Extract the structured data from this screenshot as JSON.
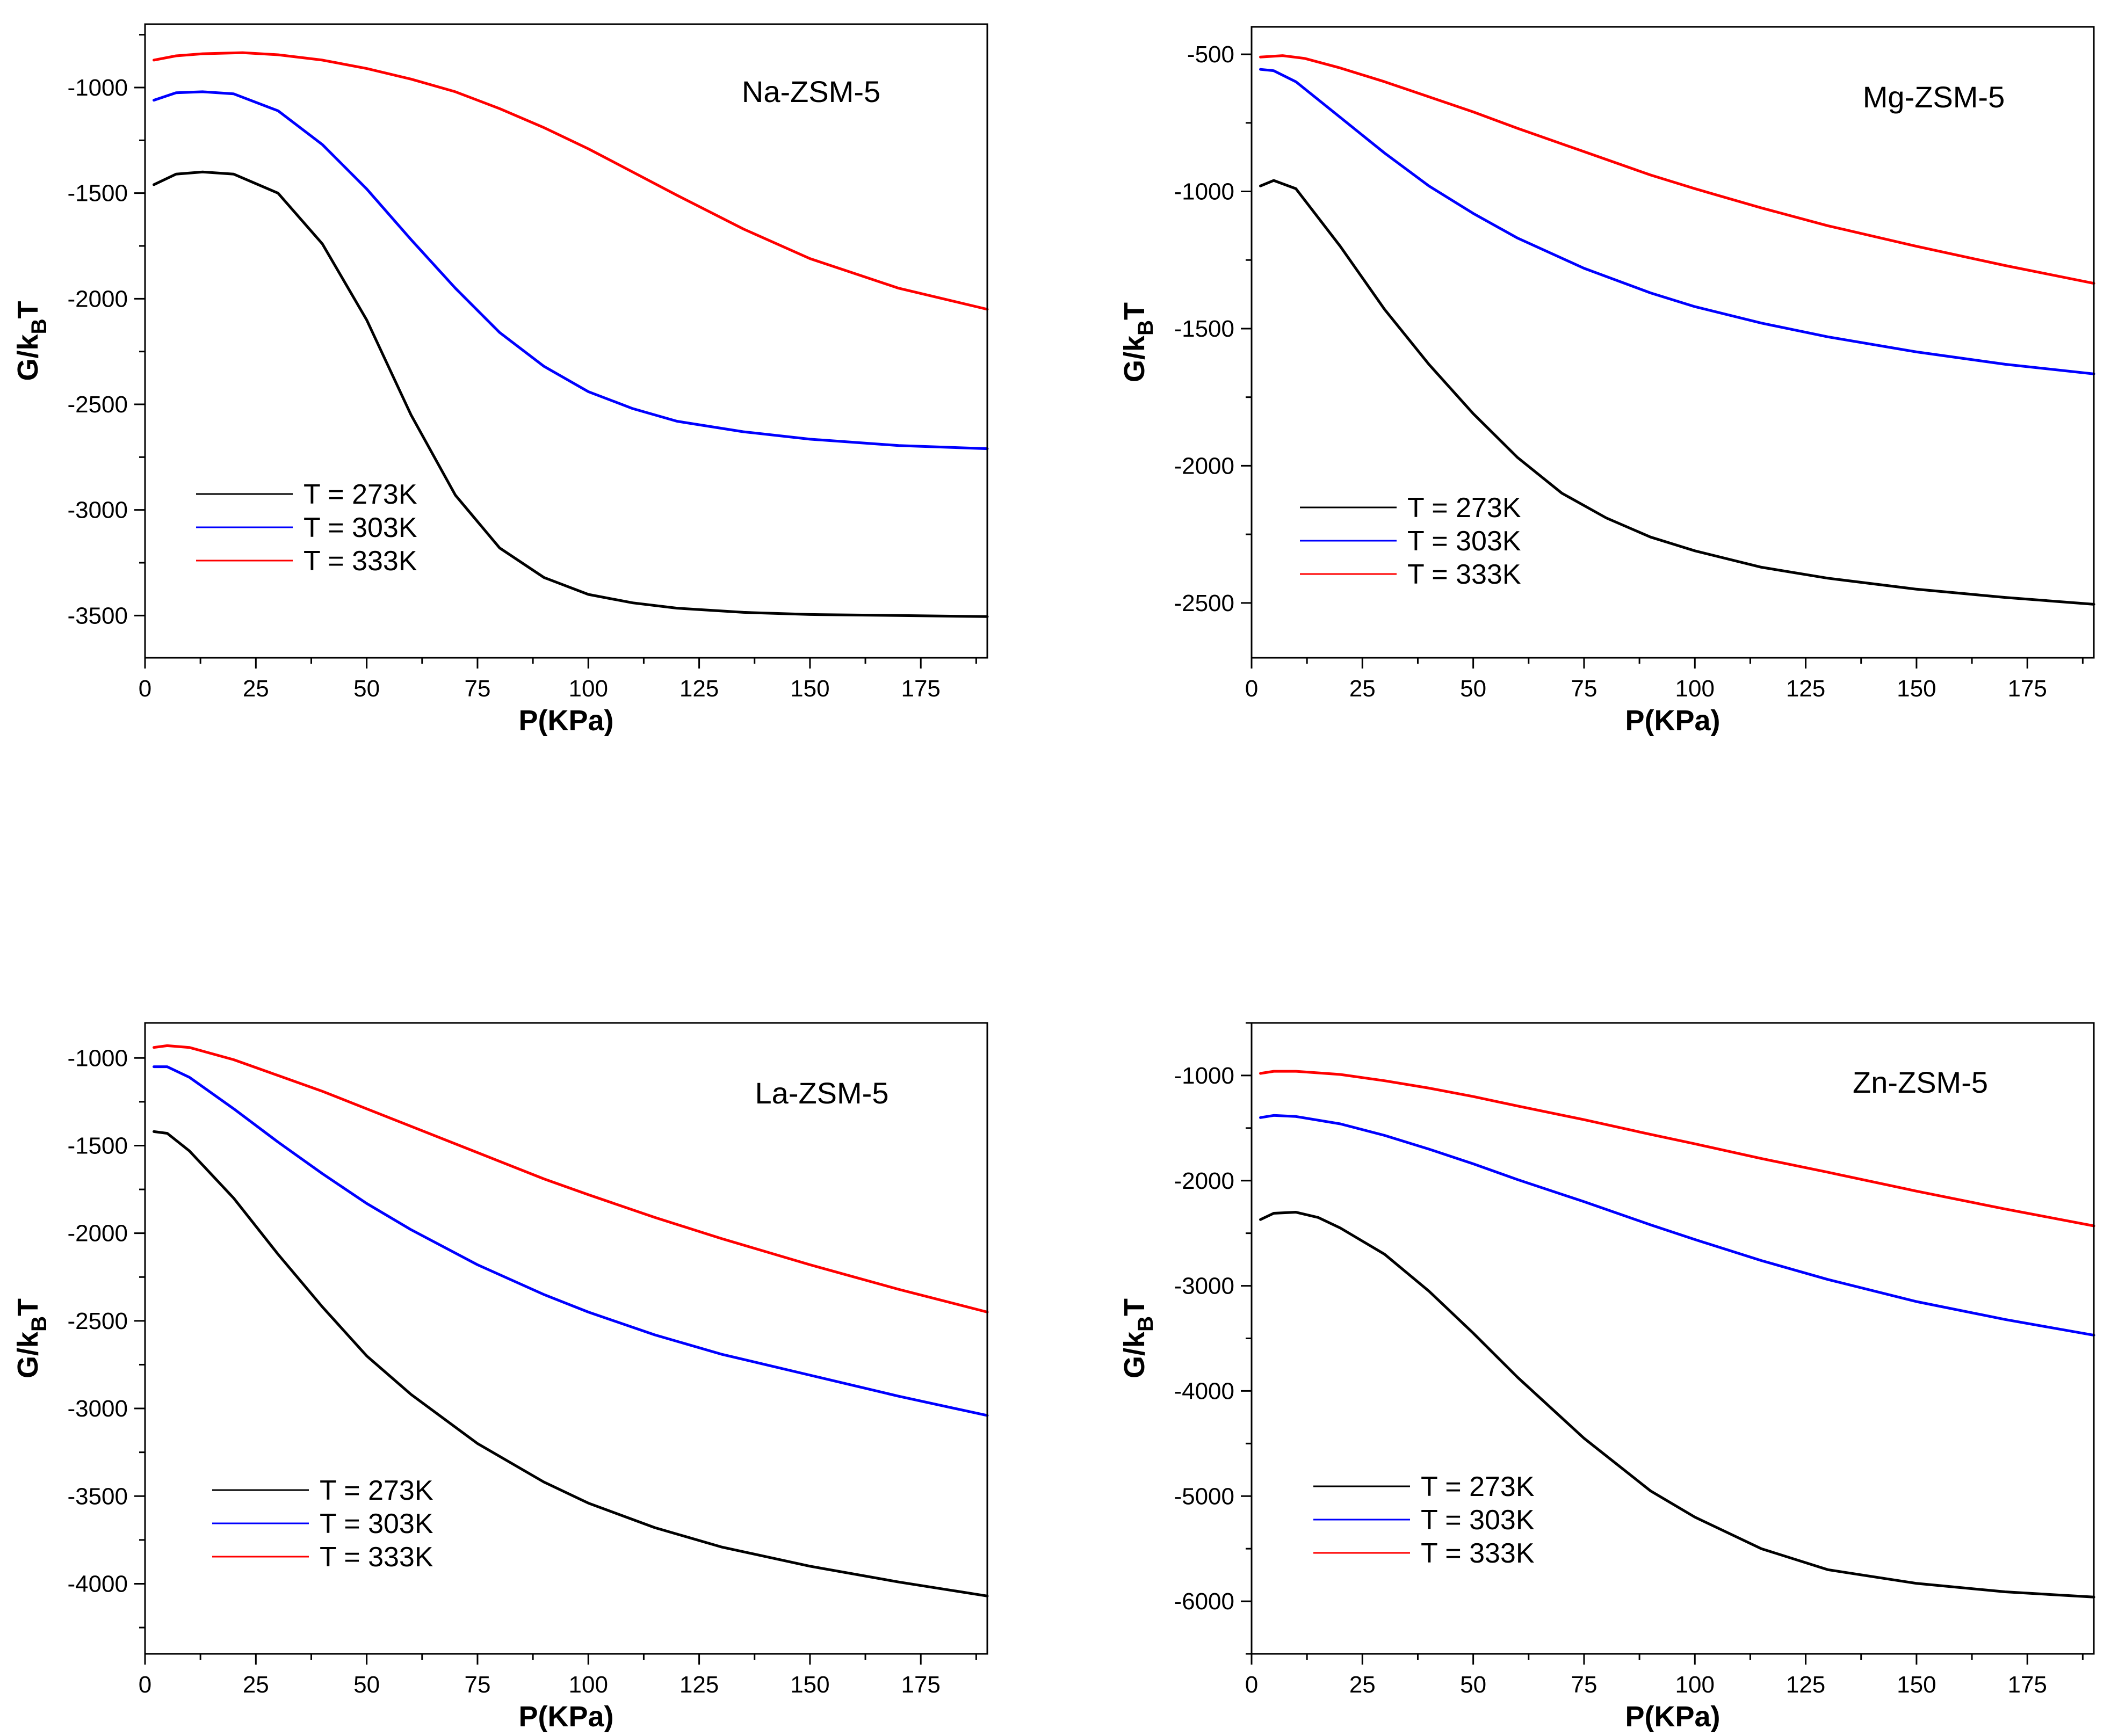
{
  "chart_data": [
    {
      "type": "line",
      "annotation": "Na-ZSM-5",
      "xlabel": "P(KPa)",
      "ylabel": {
        "main": "G/k",
        "sub": "B",
        "tail": "T"
      },
      "xlim": [
        0,
        190
      ],
      "ylim": [
        -3700,
        -700
      ],
      "xticks": [
        0,
        25,
        50,
        75,
        100,
        125,
        150,
        175
      ],
      "yticks": [
        -3500,
        -3000,
        -2500,
        -2000,
        -1500,
        -1000
      ],
      "legend_position": "bottom-left",
      "series": [
        {
          "name": "T = 273K",
          "color": "#000000",
          "x": [
            2,
            7,
            13,
            20,
            30,
            40,
            50,
            60,
            70,
            80,
            90,
            100,
            110,
            120,
            135,
            150,
            170,
            190
          ],
          "y": [
            -1460,
            -1410,
            -1400,
            -1410,
            -1500,
            -1740,
            -2100,
            -2550,
            -2930,
            -3180,
            -3320,
            -3400,
            -3440,
            -3465,
            -3485,
            -3495,
            -3500,
            -3505
          ]
        },
        {
          "name": "T = 303K",
          "color": "#0000ff",
          "x": [
            2,
            7,
            13,
            20,
            30,
            40,
            50,
            60,
            70,
            80,
            90,
            100,
            110,
            120,
            135,
            150,
            170,
            190
          ],
          "y": [
            -1060,
            -1025,
            -1020,
            -1030,
            -1110,
            -1270,
            -1480,
            -1720,
            -1950,
            -2160,
            -2320,
            -2440,
            -2520,
            -2580,
            -2630,
            -2665,
            -2695,
            -2710
          ]
        },
        {
          "name": "T = 333K",
          "color": "#ff0000",
          "x": [
            2,
            7,
            13,
            22,
            30,
            40,
            50,
            60,
            70,
            80,
            90,
            100,
            110,
            120,
            135,
            150,
            170,
            190
          ],
          "y": [
            -870,
            -850,
            -840,
            -835,
            -845,
            -870,
            -910,
            -960,
            -1020,
            -1100,
            -1190,
            -1290,
            -1400,
            -1510,
            -1670,
            -1810,
            -1950,
            -2050
          ]
        }
      ]
    },
    {
      "type": "line",
      "annotation": "Mg-ZSM-5",
      "xlabel": "P(KPa)",
      "ylabel": {
        "main": "G/k",
        "sub": "B",
        "tail": "T"
      },
      "xlim": [
        0,
        190
      ],
      "ylim": [
        -2700,
        -400
      ],
      "xticks": [
        0,
        25,
        50,
        75,
        100,
        125,
        150,
        175
      ],
      "yticks": [
        -2500,
        -2000,
        -1500,
        -1000,
        -500
      ],
      "legend_position": "bottom-left",
      "series": [
        {
          "name": "T = 273K",
          "color": "#000000",
          "x": [
            2,
            5,
            10,
            20,
            30,
            40,
            50,
            60,
            70,
            80,
            90,
            100,
            115,
            130,
            150,
            170,
            190
          ],
          "y": [
            -980,
            -960,
            -990,
            -1200,
            -1430,
            -1630,
            -1810,
            -1970,
            -2100,
            -2190,
            -2260,
            -2310,
            -2370,
            -2410,
            -2450,
            -2480,
            -2505
          ]
        },
        {
          "name": "T = 303K",
          "color": "#0000ff",
          "x": [
            2,
            5,
            10,
            20,
            30,
            40,
            50,
            60,
            75,
            90,
            100,
            115,
            130,
            150,
            170,
            190
          ],
          "y": [
            -555,
            -560,
            -600,
            -730,
            -860,
            -980,
            -1080,
            -1170,
            -1280,
            -1370,
            -1420,
            -1480,
            -1530,
            -1585,
            -1630,
            -1665
          ]
        },
        {
          "name": "T = 333K",
          "color": "#ff0000",
          "x": [
            2,
            7,
            12,
            20,
            30,
            40,
            50,
            60,
            75,
            90,
            100,
            115,
            130,
            150,
            170,
            190
          ],
          "y": [
            -510,
            -505,
            -515,
            -550,
            -600,
            -655,
            -710,
            -770,
            -855,
            -940,
            -990,
            -1060,
            -1125,
            -1200,
            -1270,
            -1335
          ]
        }
      ]
    },
    {
      "type": "line",
      "annotation": "La-ZSM-5",
      "xlabel": "P(KPa)",
      "ylabel": {
        "main": "G/k",
        "sub": "B",
        "tail": "T"
      },
      "xlim": [
        0,
        190
      ],
      "ylim": [
        -4400,
        -800
      ],
      "xticks": [
        0,
        25,
        50,
        75,
        100,
        125,
        150,
        175
      ],
      "yticks": [
        -4000,
        -3500,
        -3000,
        -2500,
        -2000,
        -1500,
        -1000
      ],
      "legend_position": "bottom-left",
      "series": [
        {
          "name": "T = 273K",
          "color": "#000000",
          "x": [
            2,
            5,
            10,
            20,
            30,
            40,
            50,
            60,
            75,
            90,
            100,
            115,
            130,
            150,
            170,
            190
          ],
          "y": [
            -1420,
            -1430,
            -1530,
            -1800,
            -2120,
            -2420,
            -2700,
            -2920,
            -3200,
            -3420,
            -3540,
            -3680,
            -3790,
            -3900,
            -3990,
            -4070
          ]
        },
        {
          "name": "T = 303K",
          "color": "#0000ff",
          "x": [
            2,
            5,
            10,
            20,
            30,
            40,
            50,
            60,
            75,
            90,
            100,
            115,
            130,
            150,
            170,
            190
          ],
          "y": [
            -1050,
            -1050,
            -1110,
            -1290,
            -1480,
            -1660,
            -1830,
            -1980,
            -2180,
            -2350,
            -2450,
            -2580,
            -2690,
            -2810,
            -2930,
            -3040
          ]
        },
        {
          "name": "T = 333K",
          "color": "#ff0000",
          "x": [
            2,
            5,
            10,
            20,
            30,
            40,
            50,
            60,
            75,
            90,
            100,
            115,
            130,
            150,
            170,
            190
          ],
          "y": [
            -940,
            -930,
            -940,
            -1010,
            -1100,
            -1190,
            -1290,
            -1390,
            -1540,
            -1690,
            -1780,
            -1910,
            -2030,
            -2180,
            -2320,
            -2450
          ]
        }
      ]
    },
    {
      "type": "line",
      "annotation": "Zn-ZSM-5",
      "xlabel": "P(KPa)",
      "ylabel": {
        "main": "G/k",
        "sub": "B",
        "tail": "T"
      },
      "xlim": [
        0,
        190
      ],
      "ylim": [
        -6500,
        -500
      ],
      "xticks": [
        0,
        25,
        50,
        75,
        100,
        125,
        150,
        175
      ],
      "yticks": [
        -6000,
        -5000,
        -4000,
        -3000,
        -2000,
        -1000
      ],
      "legend_position": "bottom-left",
      "series": [
        {
          "name": "T = 273K",
          "color": "#000000",
          "x": [
            2,
            5,
            10,
            15,
            20,
            30,
            40,
            50,
            60,
            75,
            90,
            100,
            115,
            130,
            150,
            170,
            190
          ],
          "y": [
            -2370,
            -2310,
            -2300,
            -2350,
            -2450,
            -2700,
            -3050,
            -3450,
            -3870,
            -4450,
            -4950,
            -5200,
            -5500,
            -5700,
            -5830,
            -5910,
            -5960
          ]
        },
        {
          "name": "T = 303K",
          "color": "#0000ff",
          "x": [
            2,
            5,
            10,
            20,
            30,
            40,
            50,
            60,
            75,
            90,
            100,
            115,
            130,
            150,
            170,
            190
          ],
          "y": [
            -1400,
            -1380,
            -1390,
            -1460,
            -1570,
            -1700,
            -1840,
            -1990,
            -2200,
            -2420,
            -2560,
            -2760,
            -2940,
            -3150,
            -3320,
            -3470
          ]
        },
        {
          "name": "T = 333K",
          "color": "#ff0000",
          "x": [
            2,
            5,
            10,
            20,
            30,
            40,
            50,
            60,
            75,
            90,
            100,
            115,
            130,
            150,
            170,
            190
          ],
          "y": [
            -980,
            -960,
            -960,
            -990,
            -1050,
            -1120,
            -1200,
            -1290,
            -1420,
            -1560,
            -1650,
            -1790,
            -1920,
            -2100,
            -2270,
            -2430
          ]
        }
      ]
    }
  ]
}
